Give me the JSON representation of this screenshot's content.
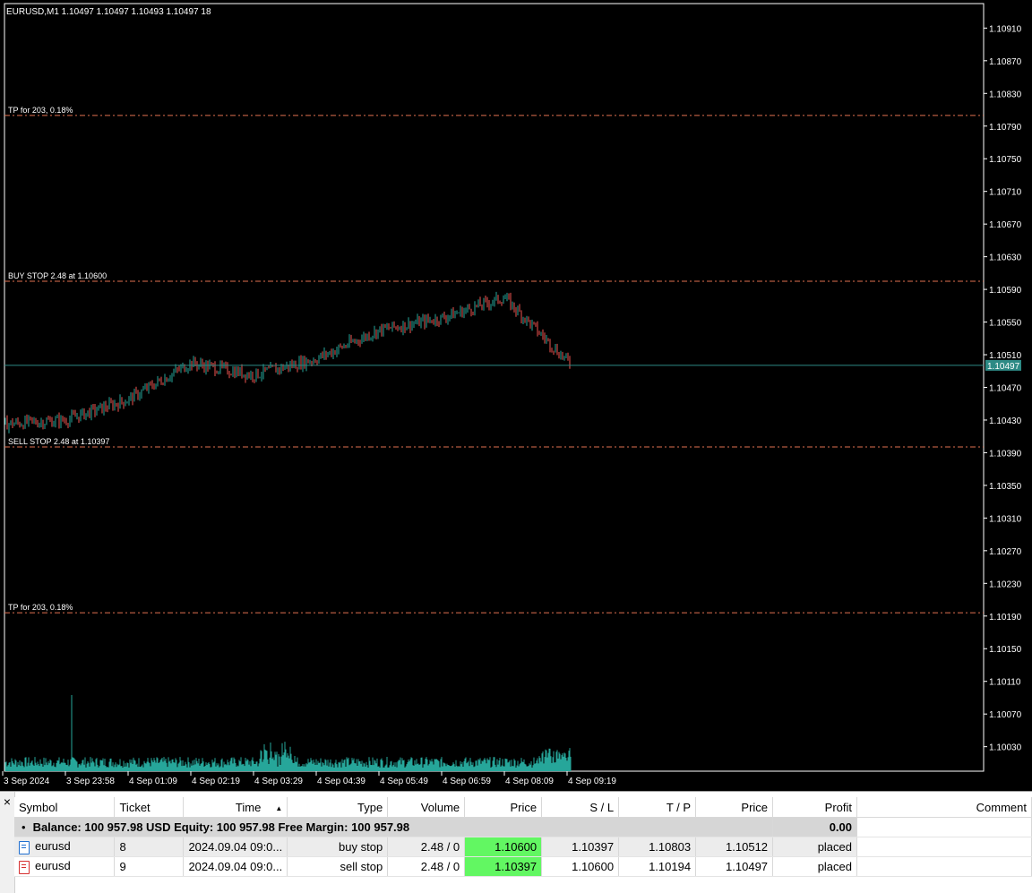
{
  "chart": {
    "header": "EURUSD,M1  1.10497 1.10497 1.10493 1.10497  18",
    "current_price": "1.10497",
    "colors": {
      "background": "#000000",
      "bull": "#26a69a",
      "bear": "#ef5350",
      "grid_line": "#e0714f",
      "price_line": "#2d8a85",
      "volume": "#26a69a"
    },
    "price_levels": [
      "1.10910",
      "1.10870",
      "1.10830",
      "1.10790",
      "1.10750",
      "1.10710",
      "1.10670",
      "1.10630",
      "1.10590",
      "1.10550",
      "1.10510",
      "1.10470",
      "1.10430",
      "1.10390",
      "1.10350",
      "1.10310",
      "1.10270",
      "1.10230",
      "1.10190",
      "1.10150",
      "1.10110",
      "1.10070",
      "1.10030"
    ],
    "time_labels": [
      "3 Sep 2024",
      "3 Sep 23:58",
      "4 Sep 01:09",
      "4 Sep 02:19",
      "4 Sep 03:29",
      "4 Sep 04:39",
      "4 Sep 05:49",
      "4 Sep 06:59",
      "4 Sep 08:09",
      "4 Sep 09:19"
    ],
    "level_lines": [
      {
        "label": "TP for 203, 0.18%",
        "price": 1.10803
      },
      {
        "label": "BUY STOP 2.48 at 1.10600",
        "price": 1.106
      },
      {
        "label": "SELL STOP 2.48 at 1.10397",
        "price": 1.10397
      },
      {
        "label": "TP for 203, 0.18%",
        "price": 1.10194
      }
    ]
  },
  "chart_data": {
    "type": "line",
    "symbol": "EURUSD",
    "timeframe": "M1",
    "x": [
      "3 Sep 2024",
      "3 Sep 23:58",
      "4 Sep 01:09",
      "4 Sep 02:19",
      "4 Sep 03:29",
      "4 Sep 04:39",
      "4 Sep 05:49",
      "4 Sep 06:59",
      "4 Sep 08:09",
      "4 Sep 09:19"
    ],
    "series": [
      {
        "values": [
          1.10425,
          1.1043,
          1.10455,
          1.105,
          1.10485,
          1.10505,
          1.1054,
          1.10555,
          1.1058,
          1.10497
        ]
      }
    ],
    "ylim": [
      1.1,
      1.1094
    ]
  },
  "terminal": {
    "close_label": "×",
    "columns": [
      "Symbol",
      "Ticket",
      "Time",
      "Type",
      "Volume",
      "Price",
      "S / L",
      "T / P",
      "Price",
      "Profit",
      "Comment"
    ],
    "balance": {
      "text": "Balance: 100 957.98 USD  Equity: 100 957.98  Free Margin: 100 957.98",
      "profit": "0.00",
      "marker": "•"
    },
    "orders": [
      {
        "symbol": "eurusd",
        "ticket": "8",
        "time": "2024.09.04 09:0...",
        "type": "buy stop",
        "volume": "2.48 / 0",
        "price": "1.10600",
        "sl": "1.10397",
        "tp": "1.10803",
        "cur_price": "1.10512",
        "profit": "placed",
        "comment": "",
        "icon": "buy-order-icon"
      },
      {
        "symbol": "eurusd",
        "ticket": "9",
        "time": "2024.09.04 09:0...",
        "type": "sell stop",
        "volume": "2.48 / 0",
        "price": "1.10397",
        "sl": "1.10600",
        "tp": "1.10194",
        "cur_price": "1.10497",
        "profit": "placed",
        "comment": "",
        "icon": "sell-order-icon"
      }
    ]
  }
}
